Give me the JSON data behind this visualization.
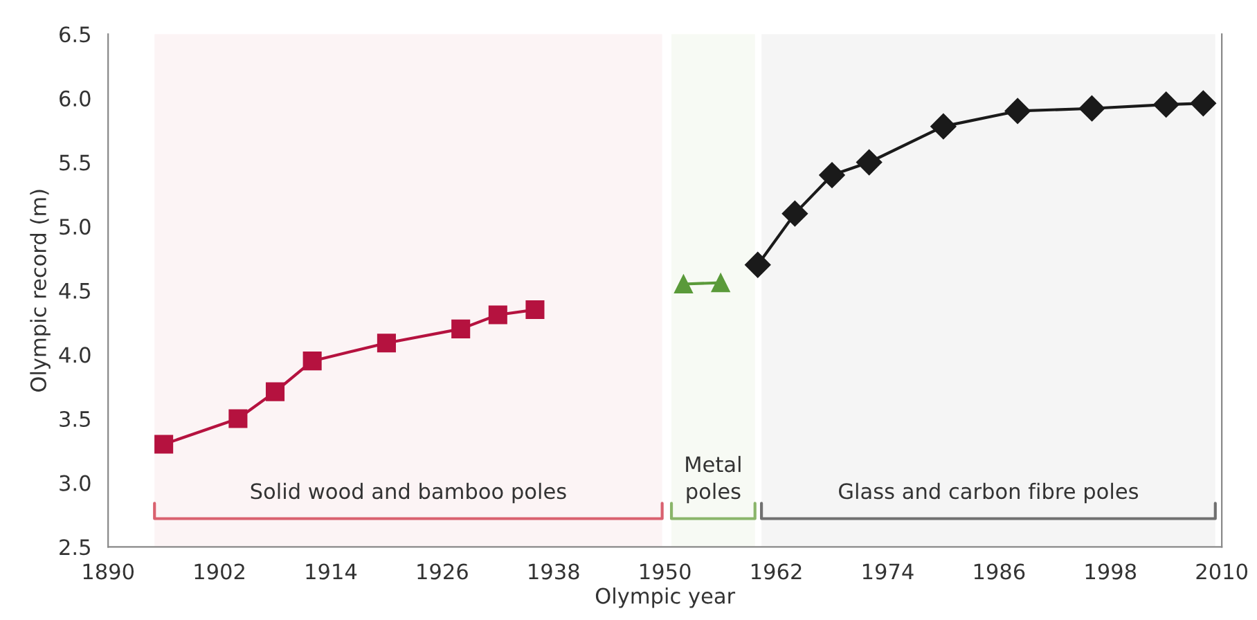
{
  "chart_data": {
    "type": "line",
    "xlabel": "Olympic year",
    "ylabel": "Olympic record (m)",
    "xlim": [
      1890,
      2010
    ],
    "xticks": [
      1890,
      1902,
      1914,
      1926,
      1938,
      1950,
      1962,
      1974,
      1986,
      1998,
      2010
    ],
    "ylim": [
      2.5,
      6.5
    ],
    "yticks": [
      {
        "value": 2.5,
        "label": "2.5"
      },
      {
        "value": 3.0,
        "label": "3.0"
      },
      {
        "value": 3.5,
        "label": "3.5"
      },
      {
        "value": 4.0,
        "label": "4.0"
      },
      {
        "value": 4.5,
        "label": "4.5"
      },
      {
        "value": 5.0,
        "label": "5.0"
      },
      {
        "value": 5.5,
        "label": "5.5"
      },
      {
        "value": 6.0,
        "label": "6.0"
      },
      {
        "value": 6.5,
        "label": "6.5"
      }
    ],
    "grid": false,
    "legend": false,
    "series": [
      {
        "color": "#b5123f",
        "marker": "square",
        "x": [
          1896,
          1904,
          1908,
          1912,
          1920,
          1928,
          1932,
          1936
        ],
        "values": [
          3.3,
          3.5,
          3.71,
          3.95,
          4.09,
          4.2,
          4.31,
          4.35
        ]
      },
      {
        "color": "#5a9a3a",
        "marker": "triangle",
        "x": [
          1952,
          1956
        ],
        "values": [
          4.55,
          4.56
        ]
      },
      {
        "color": "#1a1a1a",
        "marker": "diamond",
        "x": [
          1960,
          1964,
          1968,
          1972,
          1980,
          1988,
          1996,
          2004,
          2008
        ],
        "values": [
          4.7,
          5.1,
          5.4,
          5.5,
          5.78,
          5.9,
          5.92,
          5.95,
          5.96
        ]
      }
    ],
    "bands": [
      {
        "axis": "x",
        "from": 1895,
        "to": 1949.7,
        "label": "Solid wood and bamboo poles",
        "color": "#d9616f"
      },
      {
        "axis": "x",
        "from": 1950.7,
        "to": 1959.7,
        "label": "Metal\npoles",
        "color": "#8ab56a"
      },
      {
        "axis": "x",
        "from": 1960.4,
        "to": 2009.3,
        "label": "Glass and carbon fibre poles",
        "color": "#707070"
      }
    ]
  }
}
